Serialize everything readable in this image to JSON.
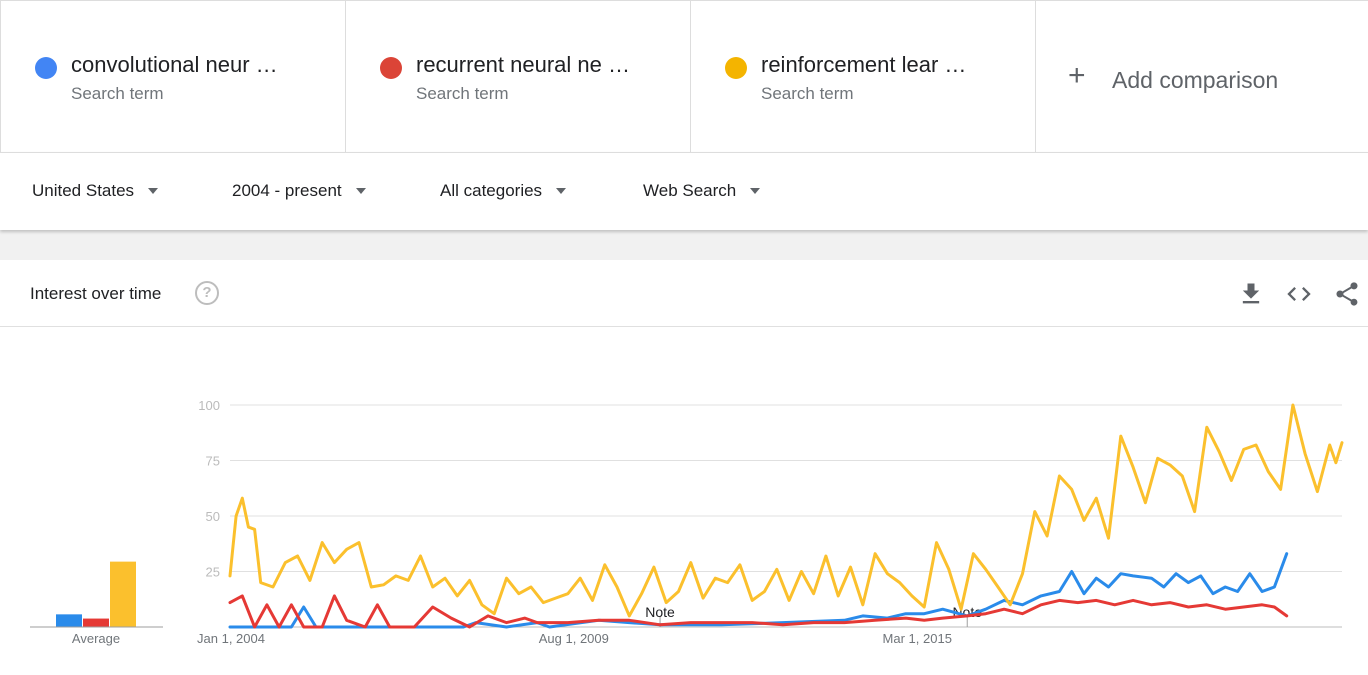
{
  "search_terms": [
    {
      "name": "convolutional neur …",
      "subtitle": "Search term",
      "color": "#4285f4"
    },
    {
      "name": "recurrent neural ne …",
      "subtitle": "Search term",
      "color": "#db4437"
    },
    {
      "name": "reinforcement lear …",
      "subtitle": "Search term",
      "color": "#f4b400"
    }
  ],
  "add_comparison": {
    "icon": "plus-icon",
    "label": "Add comparison"
  },
  "filters": {
    "region": "United States",
    "time_range": "2004 - present",
    "category": "All categories",
    "search_type": "Web Search"
  },
  "card": {
    "title": "Interest over time",
    "help_glyph": "?",
    "icons": [
      "download-icon",
      "embed-icon",
      "share-icon"
    ]
  },
  "chart_data": {
    "type": "line",
    "x_ticks": [
      "Jan 1, 2004",
      "Aug 1, 2009",
      "Mar 1, 2015"
    ],
    "x_range": [
      "2004-01",
      "2020-01"
    ],
    "ylim": [
      0,
      100
    ],
    "y_ticks": [
      25,
      50,
      75,
      100
    ],
    "grid": true,
    "notes": [
      {
        "date": "2011-01",
        "label": "Note"
      },
      {
        "date": "2016-01",
        "label": "Note"
      }
    ],
    "series": [
      {
        "color": "#2a8bea",
        "average": 6,
        "points": [
          [
            2004.0,
            0
          ],
          [
            2005.0,
            0
          ],
          [
            2005.0,
            0
          ],
          [
            2005.2,
            9
          ],
          [
            2005.4,
            0
          ],
          [
            2006.0,
            0
          ],
          [
            2007.0,
            0
          ],
          [
            2007.8,
            0
          ],
          [
            2008.0,
            2
          ],
          [
            2008.5,
            0
          ],
          [
            2009.0,
            2
          ],
          [
            2009.2,
            0
          ],
          [
            2010.0,
            3
          ],
          [
            2010.5,
            2
          ],
          [
            2011.0,
            1
          ],
          [
            2012.0,
            1
          ],
          [
            2013.0,
            2
          ],
          [
            2014.0,
            3
          ],
          [
            2014.3,
            5
          ],
          [
            2014.7,
            4
          ],
          [
            2015.0,
            6
          ],
          [
            2015.3,
            6
          ],
          [
            2015.6,
            8
          ],
          [
            2016.0,
            5
          ],
          [
            2016.3,
            8
          ],
          [
            2016.6,
            12
          ],
          [
            2016.9,
            10
          ],
          [
            2017.2,
            14
          ],
          [
            2017.5,
            16
          ],
          [
            2017.7,
            25
          ],
          [
            2017.9,
            15
          ],
          [
            2018.1,
            22
          ],
          [
            2018.3,
            18
          ],
          [
            2018.5,
            24
          ],
          [
            2018.7,
            23
          ],
          [
            2019.0,
            22
          ],
          [
            2019.2,
            18
          ],
          [
            2019.4,
            24
          ],
          [
            2019.6,
            20
          ],
          [
            2019.8,
            23
          ],
          [
            2020.0,
            15
          ],
          [
            2020.2,
            18
          ],
          [
            2020.4,
            16
          ],
          [
            2020.6,
            24
          ],
          [
            2020.8,
            16
          ],
          [
            2021.0,
            18
          ],
          [
            2021.2,
            33
          ]
        ]
      },
      {
        "color": "#e53935",
        "average": 4,
        "points": [
          [
            2004.0,
            11
          ],
          [
            2004.2,
            14
          ],
          [
            2004.4,
            0
          ],
          [
            2004.6,
            10
          ],
          [
            2004.8,
            0
          ],
          [
            2005.0,
            10
          ],
          [
            2005.2,
            0
          ],
          [
            2005.5,
            0
          ],
          [
            2005.7,
            14
          ],
          [
            2005.9,
            3
          ],
          [
            2006.2,
            0
          ],
          [
            2006.4,
            10
          ],
          [
            2006.6,
            0
          ],
          [
            2007.0,
            0
          ],
          [
            2007.3,
            9
          ],
          [
            2007.6,
            4
          ],
          [
            2007.9,
            0
          ],
          [
            2008.2,
            5
          ],
          [
            2008.5,
            2
          ],
          [
            2008.8,
            4
          ],
          [
            2009.0,
            2
          ],
          [
            2009.5,
            2
          ],
          [
            2010.0,
            3
          ],
          [
            2010.5,
            3
          ],
          [
            2011.0,
            1
          ],
          [
            2011.5,
            2
          ],
          [
            2012.0,
            2
          ],
          [
            2012.5,
            2
          ],
          [
            2013.0,
            1
          ],
          [
            2013.5,
            2
          ],
          [
            2014.0,
            2
          ],
          [
            2014.5,
            3
          ],
          [
            2015.0,
            4
          ],
          [
            2015.3,
            3
          ],
          [
            2015.6,
            4
          ],
          [
            2016.0,
            5
          ],
          [
            2016.3,
            6
          ],
          [
            2016.6,
            8
          ],
          [
            2016.9,
            6
          ],
          [
            2017.2,
            10
          ],
          [
            2017.5,
            12
          ],
          [
            2017.8,
            11
          ],
          [
            2018.1,
            12
          ],
          [
            2018.4,
            10
          ],
          [
            2018.7,
            12
          ],
          [
            2019.0,
            10
          ],
          [
            2019.3,
            11
          ],
          [
            2019.6,
            9
          ],
          [
            2019.9,
            10
          ],
          [
            2020.2,
            8
          ],
          [
            2020.5,
            9
          ],
          [
            2020.8,
            10
          ],
          [
            2021.0,
            9
          ],
          [
            2021.2,
            5
          ]
        ]
      },
      {
        "color": "#fbc02d",
        "average": 31,
        "points": [
          [
            2004.0,
            23
          ],
          [
            2004.1,
            50
          ],
          [
            2004.2,
            58
          ],
          [
            2004.3,
            45
          ],
          [
            2004.4,
            44
          ],
          [
            2004.5,
            20
          ],
          [
            2004.7,
            18
          ],
          [
            2004.9,
            29
          ],
          [
            2005.1,
            32
          ],
          [
            2005.3,
            21
          ],
          [
            2005.5,
            38
          ],
          [
            2005.7,
            29
          ],
          [
            2005.9,
            35
          ],
          [
            2006.1,
            38
          ],
          [
            2006.3,
            18
          ],
          [
            2006.5,
            19
          ],
          [
            2006.7,
            23
          ],
          [
            2006.9,
            21
          ],
          [
            2007.1,
            32
          ],
          [
            2007.3,
            18
          ],
          [
            2007.5,
            22
          ],
          [
            2007.7,
            14
          ],
          [
            2007.9,
            21
          ],
          [
            2008.1,
            10
          ],
          [
            2008.3,
            6
          ],
          [
            2008.5,
            22
          ],
          [
            2008.7,
            15
          ],
          [
            2008.9,
            18
          ],
          [
            2009.1,
            11
          ],
          [
            2009.3,
            13
          ],
          [
            2009.5,
            15
          ],
          [
            2009.7,
            22
          ],
          [
            2009.9,
            12
          ],
          [
            2010.1,
            28
          ],
          [
            2010.3,
            18
          ],
          [
            2010.5,
            5
          ],
          [
            2010.7,
            15
          ],
          [
            2010.9,
            27
          ],
          [
            2011.1,
            11
          ],
          [
            2011.3,
            16
          ],
          [
            2011.5,
            29
          ],
          [
            2011.7,
            13
          ],
          [
            2011.9,
            22
          ],
          [
            2012.1,
            20
          ],
          [
            2012.3,
            28
          ],
          [
            2012.5,
            12
          ],
          [
            2012.7,
            16
          ],
          [
            2012.9,
            26
          ],
          [
            2013.1,
            12
          ],
          [
            2013.3,
            25
          ],
          [
            2013.5,
            15
          ],
          [
            2013.7,
            32
          ],
          [
            2013.9,
            14
          ],
          [
            2014.1,
            27
          ],
          [
            2014.3,
            10
          ],
          [
            2014.5,
            33
          ],
          [
            2014.7,
            24
          ],
          [
            2014.9,
            20
          ],
          [
            2015.1,
            14
          ],
          [
            2015.3,
            9
          ],
          [
            2015.5,
            38
          ],
          [
            2015.7,
            26
          ],
          [
            2015.9,
            8
          ],
          [
            2016.1,
            33
          ],
          [
            2016.3,
            26
          ],
          [
            2016.5,
            18
          ],
          [
            2016.7,
            10
          ],
          [
            2016.9,
            24
          ],
          [
            2017.1,
            52
          ],
          [
            2017.3,
            41
          ],
          [
            2017.5,
            68
          ],
          [
            2017.7,
            62
          ],
          [
            2017.9,
            48
          ],
          [
            2018.1,
            58
          ],
          [
            2018.3,
            40
          ],
          [
            2018.5,
            86
          ],
          [
            2018.7,
            72
          ],
          [
            2018.9,
            56
          ],
          [
            2019.1,
            76
          ],
          [
            2019.3,
            73
          ],
          [
            2019.5,
            68
          ],
          [
            2019.7,
            52
          ],
          [
            2019.9,
            90
          ],
          [
            2020.1,
            79
          ],
          [
            2020.3,
            66
          ],
          [
            2020.5,
            80
          ],
          [
            2020.7,
            82
          ],
          [
            2020.9,
            70
          ],
          [
            2021.1,
            62
          ],
          [
            2021.3,
            100
          ],
          [
            2021.5,
            78
          ],
          [
            2021.7,
            61
          ],
          [
            2021.9,
            82
          ],
          [
            2022.0,
            74
          ],
          [
            2022.1,
            83
          ]
        ]
      }
    ]
  }
}
